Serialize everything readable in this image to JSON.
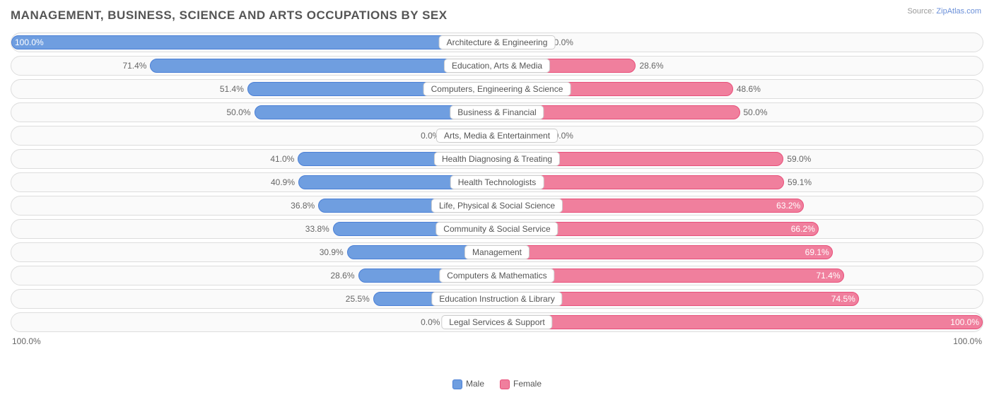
{
  "title": "MANAGEMENT, BUSINESS, SCIENCE AND ARTS OCCUPATIONS BY SEX",
  "source_label": "Source:",
  "source_value": "ZipAtlas.com",
  "axis": {
    "left": "100.0%",
    "right": "100.0%"
  },
  "legend": {
    "male": {
      "label": "Male",
      "color": "#6f9ee0",
      "border": "#4a7fd6"
    },
    "female": {
      "label": "Female",
      "color": "#f07f9d",
      "border": "#e84f7a"
    }
  },
  "colors": {
    "male_fill": "#6f9ee0",
    "male_fill_light": "#a6c2ea",
    "female_fill": "#f07f9d",
    "female_fill_light": "#f5a9bf",
    "row_border": "#dddddd",
    "text": "#666666"
  },
  "rows": [
    {
      "category": "Architecture & Engineering",
      "male": 100.0,
      "female": 0.0,
      "male_label": "100.0%",
      "female_label": "0.0%",
      "male_inside": true,
      "female_inside": false
    },
    {
      "category": "Education, Arts & Media",
      "male": 71.4,
      "female": 28.6,
      "male_label": "71.4%",
      "female_label": "28.6%",
      "male_inside": false,
      "female_inside": false
    },
    {
      "category": "Computers, Engineering & Science",
      "male": 51.4,
      "female": 48.6,
      "male_label": "51.4%",
      "female_label": "48.6%",
      "male_inside": false,
      "female_inside": false
    },
    {
      "category": "Business & Financial",
      "male": 50.0,
      "female": 50.0,
      "male_label": "50.0%",
      "female_label": "50.0%",
      "male_inside": false,
      "female_inside": false
    },
    {
      "category": "Arts, Media & Entertainment",
      "male": 0.0,
      "female": 0.0,
      "male_label": "0.0%",
      "female_label": "0.0%",
      "male_inside": false,
      "female_inside": false,
      "faded": true
    },
    {
      "category": "Health Diagnosing & Treating",
      "male": 41.0,
      "female": 59.0,
      "male_label": "41.0%",
      "female_label": "59.0%",
      "male_inside": false,
      "female_inside": false
    },
    {
      "category": "Health Technologists",
      "male": 40.9,
      "female": 59.1,
      "male_label": "40.9%",
      "female_label": "59.1%",
      "male_inside": false,
      "female_inside": false
    },
    {
      "category": "Life, Physical & Social Science",
      "male": 36.8,
      "female": 63.2,
      "male_label": "36.8%",
      "female_label": "63.2%",
      "male_inside": false,
      "female_inside": true
    },
    {
      "category": "Community & Social Service",
      "male": 33.8,
      "female": 66.2,
      "male_label": "33.8%",
      "female_label": "66.2%",
      "male_inside": false,
      "female_inside": true
    },
    {
      "category": "Management",
      "male": 30.9,
      "female": 69.1,
      "male_label": "30.9%",
      "female_label": "69.1%",
      "male_inside": false,
      "female_inside": true
    },
    {
      "category": "Computers & Mathematics",
      "male": 28.6,
      "female": 71.4,
      "male_label": "28.6%",
      "female_label": "71.4%",
      "male_inside": false,
      "female_inside": true
    },
    {
      "category": "Education Instruction & Library",
      "male": 25.5,
      "female": 74.5,
      "male_label": "25.5%",
      "female_label": "74.5%",
      "male_inside": false,
      "female_inside": true
    },
    {
      "category": "Legal Services & Support",
      "male": 0.0,
      "female": 100.0,
      "male_label": "0.0%",
      "female_label": "100.0%",
      "male_inside": false,
      "female_inside": true,
      "male_faded": true
    }
  ]
}
